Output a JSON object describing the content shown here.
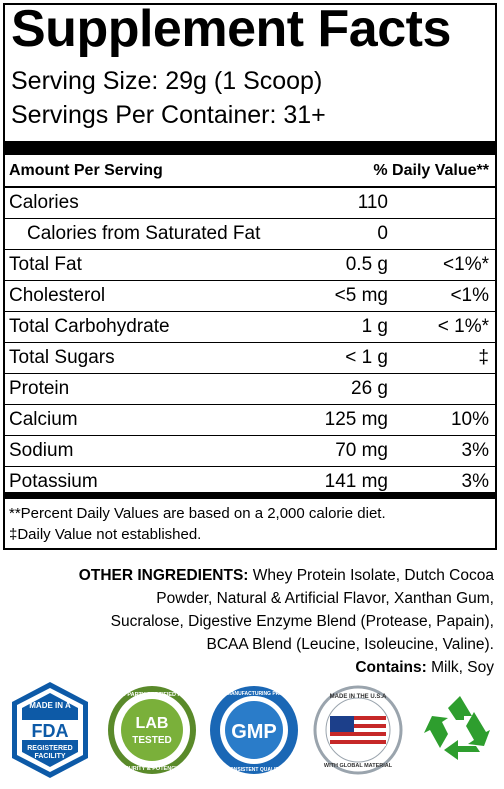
{
  "title": "Supplement Facts",
  "serving_size": "Serving Size: 29g (1 Scoop)",
  "servings_per_container": "Servings Per Container: 31+",
  "header": {
    "amount": "Amount Per Serving",
    "dv": "% Daily Value**"
  },
  "rows": [
    {
      "name": "Calories",
      "amount": "110",
      "dv": ""
    },
    {
      "name": "Calories from Saturated Fat",
      "amount": "0",
      "dv": ""
    },
    {
      "name": "Total Fat",
      "amount": "0.5 g",
      "dv": "<1%*"
    },
    {
      "name": "Cholesterol",
      "amount": "<5 mg",
      "dv": "<1%"
    },
    {
      "name": "Total Carbohydrate",
      "amount": "1 g",
      "dv": "< 1%*"
    },
    {
      "name": "Total Sugars",
      "amount": "< 1 g",
      "dv": "‡"
    },
    {
      "name": "Protein",
      "amount": "26 g",
      "dv": ""
    },
    {
      "name": "Calcium",
      "amount": "125 mg",
      "dv": "10%"
    },
    {
      "name": "Sodium",
      "amount": "70 mg",
      "dv": "3%"
    },
    {
      "name": "Potassium",
      "amount": "141 mg",
      "dv": "3%"
    }
  ],
  "footnotes": [
    "**Percent Daily Values are based on a 2,000 calorie diet.",
    "‡Daily Value not established."
  ],
  "ingredients": {
    "label": "OTHER INGREDIENTS:",
    "line1": "Whey Protein Isolate, Dutch Cocoa",
    "line2": "Powder, Natural & Artificial Flavor, Xanthan Gum,",
    "line3": "Sucralose, Digestive Enzyme Blend (Protease, Papain),",
    "line4": "BCAA Blend (Leucine, Isoleucine, Valine).",
    "contains_label": "Contains:",
    "contains": "Milk, Soy"
  },
  "badges": {
    "fda": {
      "top": "MADE IN A",
      "main": "FDA",
      "sub1": "REGISTERED",
      "sub2": "FACILITY"
    },
    "lab": {
      "top": "3RD PARTY CERTIFIED FOR",
      "main1": "LAB",
      "main2": "TESTED",
      "bottom": "PURITY & POTENCY"
    },
    "gmp": {
      "top": "GOOD MANUFACTURING PRACTICE",
      "main": "GMP",
      "bottom": "CONSISTENT QUALITY"
    },
    "usa": {
      "top": "MADE IN THE U.S.A",
      "bottom": "WITH GLOBAL MATERIAL"
    },
    "recycle_icon": "recycle-icon"
  }
}
